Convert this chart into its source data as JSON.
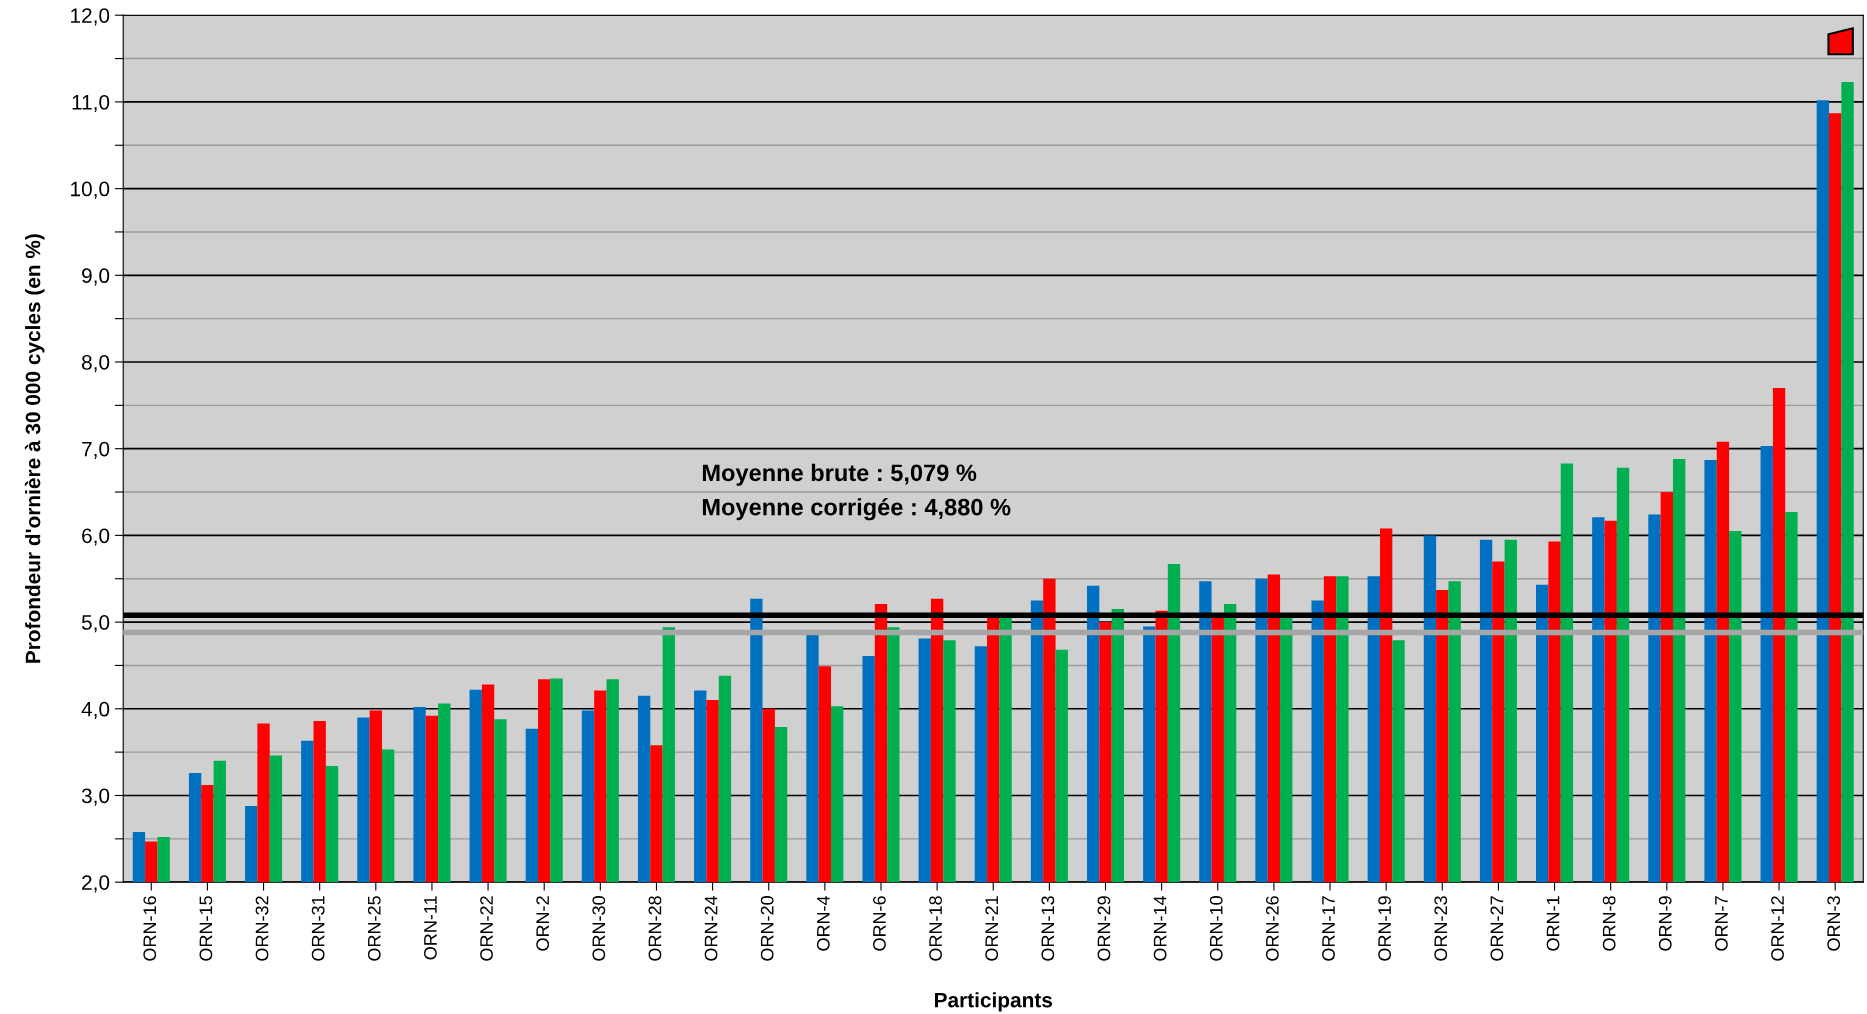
{
  "chart_data": {
    "type": "bar",
    "xlabel": "Participants",
    "ylabel": "Profondeur d'ornière à 30 000 cycles (en %)",
    "categories": [
      "ORN-16",
      "ORN-15",
      "ORN-32",
      "ORN-31",
      "ORN-25",
      "ORN-11",
      "ORN-22",
      "ORN-2",
      "ORN-30",
      "ORN-28",
      "ORN-24",
      "ORN-20",
      "ORN-4",
      "ORN-6",
      "ORN-18",
      "ORN-21",
      "ORN-13",
      "ORN-29",
      "ORN-14",
      "ORN-10",
      "ORN-26",
      "ORN-17",
      "ORN-19",
      "ORN-23",
      "ORN-27",
      "ORN-1",
      "ORN-8",
      "ORN-9",
      "ORN-7",
      "ORN-12",
      "ORN-3"
    ],
    "series": [
      {
        "color": "#0070c0",
        "values": [
          2.58,
          3.26,
          2.88,
          3.63,
          3.9,
          4.02,
          4.22,
          3.77,
          3.98,
          4.15,
          4.21,
          5.27,
          4.87,
          4.61,
          4.81,
          4.72,
          5.25,
          5.42,
          4.95,
          5.47,
          5.5,
          5.25,
          5.53,
          6.0,
          5.95,
          5.43,
          6.21,
          6.24,
          6.87,
          7.03,
          11.02
        ]
      },
      {
        "color": "#ff0000",
        "values": [
          2.47,
          3.12,
          3.83,
          3.86,
          3.98,
          3.92,
          4.28,
          4.34,
          4.21,
          3.58,
          4.1,
          4.0,
          4.49,
          5.21,
          5.27,
          5.07,
          5.5,
          5.0,
          5.13,
          5.07,
          5.55,
          5.53,
          6.08,
          5.37,
          5.7,
          5.93,
          6.17,
          6.5,
          7.08,
          7.7,
          10.87
        ]
      },
      {
        "color": "#00b050",
        "values": [
          2.52,
          3.4,
          3.46,
          3.34,
          3.53,
          4.06,
          3.88,
          4.35,
          4.34,
          4.94,
          4.38,
          3.79,
          4.03,
          4.94,
          4.79,
          5.07,
          4.68,
          5.15,
          5.67,
          5.21,
          5.07,
          5.53,
          4.79,
          5.47,
          5.95,
          6.83,
          6.78,
          6.88,
          6.05,
          6.27,
          11.23
        ]
      }
    ],
    "ylim": [
      2,
      12
    ],
    "yticks": [
      {
        "value": 2,
        "label": "2,0"
      },
      {
        "value": 2.5,
        "label": null
      },
      {
        "value": 3,
        "label": "3,0"
      },
      {
        "value": 3.5,
        "label": null
      },
      {
        "value": 4,
        "label": "4,0"
      },
      {
        "value": 4.5,
        "label": null
      },
      {
        "value": 5,
        "label": "5,0"
      },
      {
        "value": 5.5,
        "label": null
      },
      {
        "value": 6,
        "label": "6,0"
      },
      {
        "value": 6.5,
        "label": null
      },
      {
        "value": 7,
        "label": "7,0"
      },
      {
        "value": 7.5,
        "label": null
      },
      {
        "value": 8,
        "label": "8,0"
      },
      {
        "value": 8.5,
        "label": null
      },
      {
        "value": 9,
        "label": "9,0"
      },
      {
        "value": 9.5,
        "label": null
      },
      {
        "value": 10,
        "label": "10,0"
      },
      {
        "value": 10.5,
        "label": null
      },
      {
        "value": 11,
        "label": "11,0"
      },
      {
        "value": 11.5,
        "label": null
      },
      {
        "value": 12,
        "label": "12,0"
      }
    ],
    "grid": "y",
    "ref_lines": [
      {
        "axis": "y",
        "value": 5.079,
        "color": "#000000"
      },
      {
        "axis": "y",
        "value": 4.88,
        "color": "#a6a6a6"
      }
    ],
    "annotations": [
      "Moyenne brute : 5,079 %\nMoyenne corrigée : 4,880 %"
    ]
  }
}
